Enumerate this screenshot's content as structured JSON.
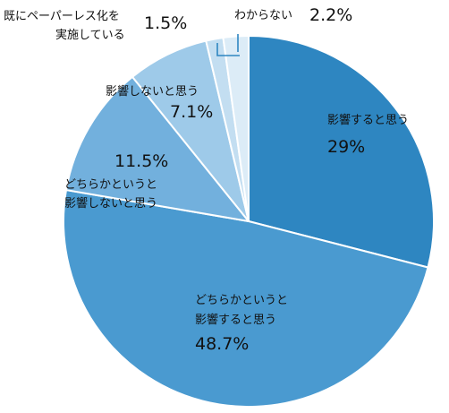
{
  "chart_data": {
    "type": "pie",
    "start": "12 o'clock",
    "direction": "clockwise",
    "slices": [
      {
        "label_lines": [
          "影響すると思う"
        ],
        "value": 29,
        "value_label": "29%",
        "color": "#2e86c1"
      },
      {
        "label_lines": [
          "どちらかというと",
          "影響すると思う"
        ],
        "value": 48.7,
        "value_label": "48.7%",
        "color": "#4a9ad0"
      },
      {
        "label_lines": [
          "どちらかというと",
          "影響しないと思う"
        ],
        "value": 11.5,
        "value_label": "11.5%",
        "color": "#72b0dd"
      },
      {
        "label_lines": [
          "影響しないと思う"
        ],
        "value": 7.1,
        "value_label": "7.1%",
        "color": "#9ecae9"
      },
      {
        "label_lines": [
          "既にペーパーレス化を",
          "実施している"
        ],
        "value": 1.5,
        "value_label": "1.5%",
        "color": "#c3def1"
      },
      {
        "label_lines": [
          "わからない"
        ],
        "value": 2.2,
        "value_label": "2.2%",
        "color": "#dcecf7"
      }
    ]
  }
}
